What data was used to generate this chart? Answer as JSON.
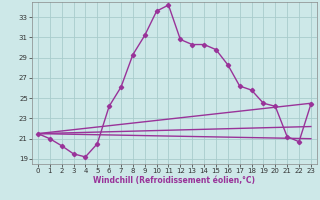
{
  "xlabel": "Windchill (Refroidissement éolien,°C)",
  "bg_color": "#cde8e8",
  "grid_color": "#a8cccc",
  "line_color": "#993399",
  "xlim": [
    -0.5,
    23.5
  ],
  "ylim": [
    18.5,
    34.5
  ],
  "yticks": [
    19,
    21,
    23,
    25,
    27,
    29,
    31,
    33
  ],
  "xticks": [
    0,
    1,
    2,
    3,
    4,
    5,
    6,
    7,
    8,
    9,
    10,
    11,
    12,
    13,
    14,
    15,
    16,
    17,
    18,
    19,
    20,
    21,
    22,
    23
  ],
  "main_x": [
    0,
    1,
    2,
    3,
    4,
    5,
    6,
    7,
    8,
    9,
    10,
    11,
    12,
    13,
    14,
    15,
    16,
    17,
    18,
    19,
    20,
    21,
    22,
    23
  ],
  "main_y": [
    21.5,
    21.0,
    20.3,
    19.5,
    19.2,
    20.5,
    24.2,
    26.1,
    29.3,
    31.2,
    33.6,
    34.2,
    30.8,
    30.3,
    30.3,
    29.8,
    28.3,
    26.2,
    25.8,
    24.5,
    24.2,
    21.2,
    20.7,
    24.4
  ],
  "ref_lines": [
    {
      "x": [
        0,
        23
      ],
      "y": [
        21.5,
        24.5
      ]
    },
    {
      "x": [
        0,
        23
      ],
      "y": [
        21.5,
        22.2
      ]
    },
    {
      "x": [
        0,
        23
      ],
      "y": [
        21.5,
        21.0
      ]
    }
  ],
  "marker": "D",
  "markersize": 2.2,
  "linewidth": 1.0,
  "tick_fontsize": 5,
  "xlabel_fontsize": 5.5
}
